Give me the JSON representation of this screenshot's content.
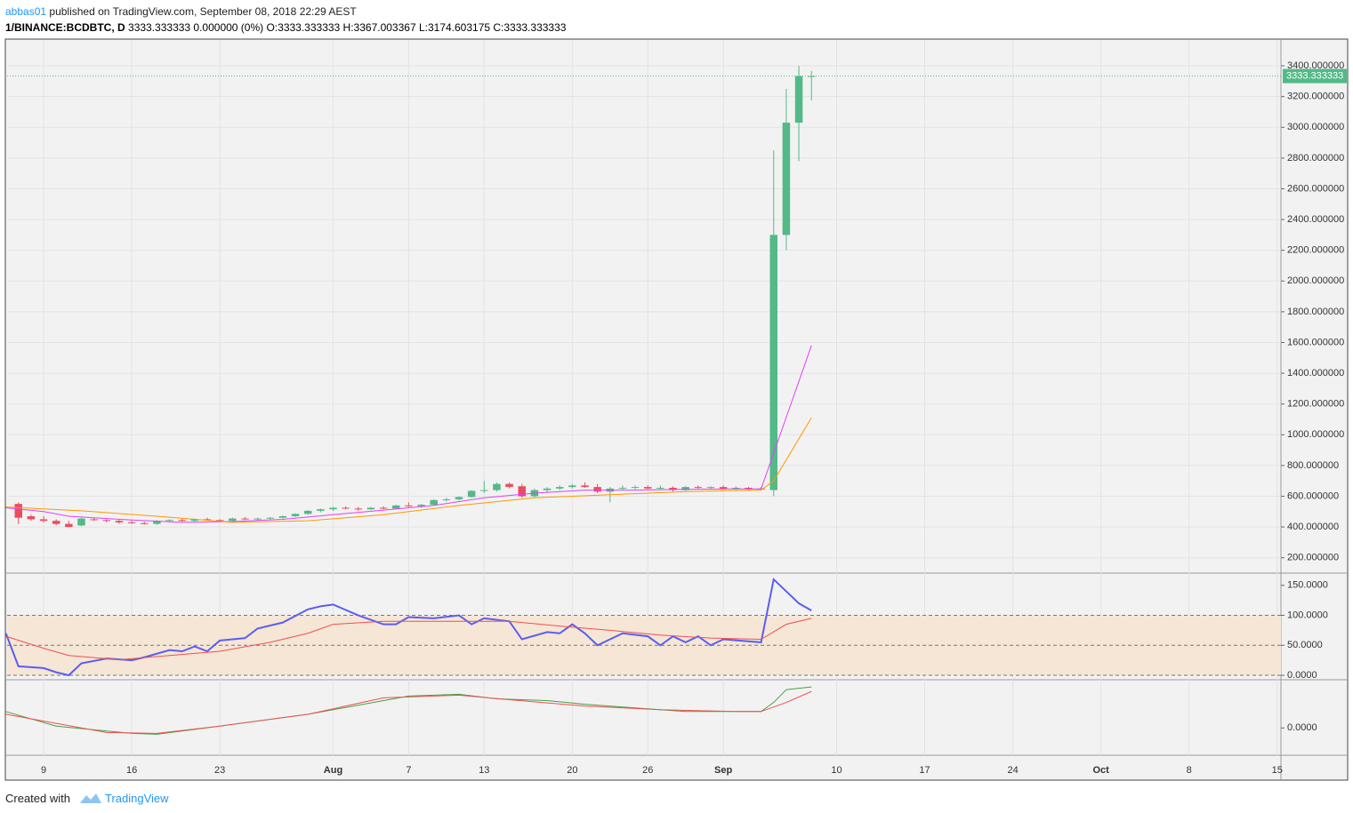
{
  "header": {
    "author": "abbas01",
    "published": "published on TradingView.com, September 08, 2018 22:29 AEST",
    "symbol": "1/BINANCE:BCDBTC, D",
    "quote": "3333.333333 0.000000 (0%) O:3333.333333 H:3367.003367 L:3174.603175 C:3333.333333"
  },
  "footer": {
    "created": "Created with",
    "brand": "TradingView"
  },
  "chart_data": [
    {
      "type": "candlestick",
      "up_color": "#53b987",
      "down_color": "#eb4d5c",
      "x": [
        7,
        8,
        9,
        10,
        11,
        12,
        13,
        14,
        15,
        16,
        17,
        18,
        19,
        20,
        21,
        22,
        23,
        24,
        25,
        26,
        27,
        28,
        29,
        30,
        31,
        32,
        33,
        34,
        35,
        36,
        37,
        38,
        39,
        40,
        41,
        42,
        43,
        44,
        45,
        46,
        47,
        48,
        49,
        50,
        51,
        52,
        53,
        54,
        55,
        56,
        57,
        58,
        59,
        60,
        61,
        62,
        63,
        64,
        65,
        66,
        67,
        68,
        69,
        70
      ],
      "open": [
        550,
        470,
        450,
        440,
        420,
        410,
        450,
        445,
        440,
        430,
        425,
        420,
        440,
        445,
        440,
        450,
        445,
        440,
        455,
        450,
        455,
        460,
        470,
        485,
        505,
        515,
        525,
        520,
        515,
        525,
        520,
        540,
        535,
        545,
        575,
        580,
        595,
        635,
        640,
        680,
        665,
        600,
        640,
        650,
        660,
        670,
        660,
        630,
        650,
        655,
        660,
        650,
        655,
        640,
        660,
        655,
        660,
        650,
        655,
        650,
        640,
        2300,
        3030,
        3333.333333
      ],
      "high": [
        560,
        480,
        470,
        450,
        440,
        460,
        460,
        450,
        450,
        440,
        435,
        445,
        450,
        455,
        455,
        460,
        450,
        460,
        465,
        460,
        465,
        475,
        490,
        510,
        520,
        530,
        535,
        530,
        530,
        535,
        545,
        560,
        550,
        580,
        590,
        600,
        640,
        700,
        690,
        690,
        680,
        650,
        660,
        670,
        680,
        690,
        680,
        660,
        670,
        670,
        670,
        670,
        665,
        665,
        670,
        665,
        670,
        665,
        660,
        660,
        2850,
        3250,
        3400,
        3367.003367
      ],
      "low": [
        420,
        440,
        430,
        410,
        400,
        405,
        440,
        430,
        420,
        420,
        415,
        415,
        430,
        435,
        430,
        440,
        430,
        435,
        445,
        440,
        450,
        455,
        465,
        480,
        495,
        505,
        515,
        505,
        510,
        515,
        515,
        530,
        525,
        540,
        565,
        570,
        590,
        620,
        630,
        650,
        590,
        590,
        620,
        640,
        650,
        655,
        620,
        560,
        640,
        645,
        645,
        640,
        630,
        635,
        650,
        645,
        650,
        640,
        640,
        640,
        600,
        2200,
        2780,
        3174.603175
      ],
      "close": [
        460,
        450,
        440,
        420,
        400,
        455,
        445,
        440,
        430,
        425,
        420,
        440,
        445,
        440,
        450,
        445,
        440,
        455,
        450,
        455,
        460,
        470,
        485,
        505,
        515,
        525,
        520,
        515,
        525,
        520,
        540,
        535,
        545,
        575,
        580,
        595,
        635,
        640,
        680,
        660,
        600,
        640,
        650,
        660,
        670,
        660,
        630,
        650,
        655,
        660,
        650,
        655,
        640,
        660,
        655,
        660,
        650,
        655,
        650,
        645,
        2300,
        3030,
        3333.333333,
        3333.333333
      ],
      "lines": [
        {
          "color": "#e040fb",
          "x": [
            6,
            9,
            11,
            16,
            20,
            24,
            28,
            32,
            36,
            40,
            44,
            48,
            52,
            56,
            60,
            64,
            66,
            67,
            70
          ],
          "values": [
            525,
            500,
            470,
            445,
            430,
            435,
            450,
            480,
            510,
            540,
            590,
            620,
            640,
            640,
            645,
            648,
            648,
            880,
            1580
          ]
        },
        {
          "color": "#ff9800",
          "x": [
            6,
            12,
            18,
            24,
            30,
            36,
            42,
            48,
            54,
            60,
            66,
            67,
            70
          ],
          "values": [
            530,
            505,
            470,
            430,
            440,
            480,
            540,
            590,
            610,
            630,
            640,
            700,
            1110
          ]
        }
      ],
      "last_price": {
        "value": 3333.333333,
        "label": "3333.333333"
      },
      "xlim": [
        6.1,
        107.3
      ],
      "xticks": [
        9,
        16,
        23,
        {
          "value": 32,
          "label": "Aug"
        },
        {
          "value": 38,
          "label": "7"
        },
        {
          "value": 44,
          "label": "13"
        },
        {
          "value": 51,
          "label": "20"
        },
        {
          "value": 57,
          "label": "26"
        },
        {
          "value": 63,
          "label": "Sep"
        },
        {
          "value": 72,
          "label": "10"
        },
        {
          "value": 79,
          "label": "17"
        },
        {
          "value": 86,
          "label": "24"
        },
        {
          "value": 93,
          "label": "Oct"
        },
        {
          "value": 100,
          "label": "8"
        },
        {
          "value": 107,
          "label": "15"
        }
      ],
      "ylim": [
        100,
        3568
      ],
      "yticks": [
        {
          "value": 200,
          "label": "200.000000"
        },
        {
          "value": 400,
          "label": "400.000000"
        },
        {
          "value": 600,
          "label": "600.000000"
        },
        {
          "value": 800,
          "label": "800.000000"
        },
        {
          "value": 1000,
          "label": "1000.000000"
        },
        {
          "value": 1200,
          "label": "1200.000000"
        },
        {
          "value": 1400,
          "label": "1400.000000"
        },
        {
          "value": 1600,
          "label": "1600.000000"
        },
        {
          "value": 1800,
          "label": "1800.000000"
        },
        {
          "value": 2000,
          "label": "2000.000000"
        },
        {
          "value": 2200,
          "label": "2200.000000"
        },
        {
          "value": 2400,
          "label": "2400.000000"
        },
        {
          "value": 2600,
          "label": "2600.000000"
        },
        {
          "value": 2800,
          "label": "2800.000000"
        },
        {
          "value": 3000,
          "label": "3000.000000"
        },
        {
          "value": 3200,
          "label": "3200.000000"
        },
        {
          "value": 3400,
          "label": "3400.000000"
        }
      ],
      "grid": true
    },
    {
      "type": "line",
      "band": [
        0,
        100
      ],
      "band_color": "#f5e6d6",
      "levels": [
        0,
        50,
        100
      ],
      "lines": [
        {
          "color": "#5a5ef0",
          "x": [
            6,
            7,
            9,
            10,
            11,
            12,
            14,
            16,
            17,
            19,
            20,
            21,
            22,
            23,
            25,
            26,
            28,
            30,
            31,
            32,
            34,
            36,
            37,
            38,
            40,
            42,
            43,
            44,
            46,
            47,
            49,
            50,
            51,
            52,
            53,
            55,
            57,
            58,
            59,
            60,
            61,
            62,
            63,
            66,
            67,
            68,
            69,
            70
          ],
          "values": [
            70,
            15,
            12,
            5,
            0,
            20,
            28,
            25,
            30,
            42,
            40,
            48,
            40,
            58,
            62,
            78,
            88,
            110,
            115,
            118,
            100,
            85,
            85,
            97,
            95,
            100,
            85,
            95,
            90,
            60,
            72,
            70,
            85,
            70,
            50,
            70,
            65,
            50,
            65,
            55,
            65,
            50,
            60,
            55,
            160,
            140,
            120,
            108
          ]
        },
        {
          "color": "#f0514f",
          "x": [
            6,
            9,
            11,
            15,
            19,
            23,
            27,
            30,
            32,
            36,
            42,
            46,
            50,
            54,
            58,
            62,
            66,
            68,
            70
          ],
          "values": [
            65,
            45,
            33,
            26,
            33,
            40,
            55,
            70,
            85,
            90,
            90,
            90,
            82,
            75,
            67,
            62,
            60,
            85,
            95
          ]
        }
      ],
      "ylim": [
        -7.4,
        166
      ],
      "yticks": [
        {
          "value": 0,
          "label": "0.0000"
        },
        {
          "value": 50,
          "label": "50.0000"
        },
        {
          "value": 100,
          "label": "100.0000"
        },
        {
          "value": 150,
          "label": "150.0000"
        }
      ]
    },
    {
      "type": "line",
      "lines": [
        {
          "color": "#43a047",
          "x": [
            6,
            10,
            16,
            18,
            23,
            30,
            38,
            42,
            45,
            49,
            52,
            57,
            60,
            64,
            66,
            67,
            68,
            70
          ],
          "values": [
            18,
            2,
            -6,
            -7,
            2,
            15,
            35,
            37,
            32,
            30,
            26,
            21,
            18,
            18,
            18,
            28,
            42,
            45
          ]
        },
        {
          "color": "#f0514f",
          "x": [
            6,
            10,
            14,
            18,
            23,
            30,
            36,
            42,
            46,
            52,
            58,
            64,
            66,
            68,
            70
          ],
          "values": [
            15,
            5,
            -5,
            -6,
            2,
            15,
            33,
            36,
            31,
            24,
            20,
            18,
            18,
            28,
            40
          ]
        }
      ],
      "ylim": [
        -30,
        50
      ],
      "yticks": [
        {
          "value": 0,
          "label": "0.0000"
        }
      ]
    }
  ]
}
